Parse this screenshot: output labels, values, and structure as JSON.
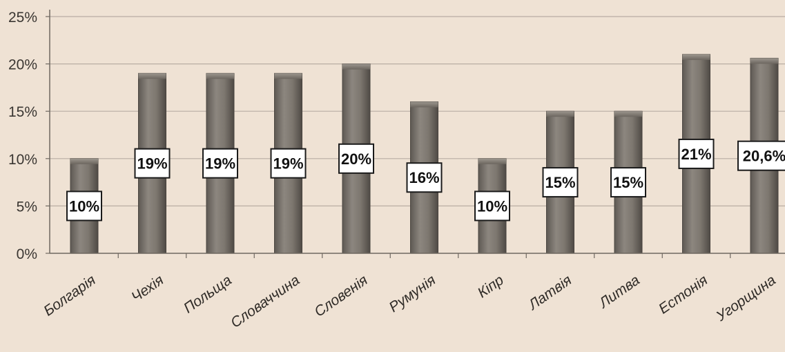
{
  "chart_data": {
    "type": "bar",
    "title": "",
    "xlabel": "",
    "ylabel": "",
    "categories": [
      "Болгарія",
      "Чехія",
      "Польща",
      "Словаччина",
      "Словенія",
      "Румунія",
      "Кіпр",
      "Латвія",
      "Литва",
      "Естонія",
      "Угорщина"
    ],
    "values": [
      10,
      19,
      19,
      19,
      20,
      16,
      10,
      15,
      15,
      21,
      20.6
    ],
    "data_labels": [
      "10%",
      "19%",
      "19%",
      "19%",
      "20%",
      "16%",
      "10%",
      "15%",
      "15%",
      "21%",
      "20,6%"
    ],
    "yticks": [
      "0%",
      "5%",
      "10%",
      "15%",
      "20%",
      "25%"
    ],
    "ylim": [
      0,
      25
    ],
    "grid": true,
    "legend": "none",
    "colors": {
      "background": "#efe2d4",
      "bar": "#7b756e",
      "bar_dark": "#5a554f",
      "grid": "#b9ada3",
      "axis": "#6f6860",
      "label_box": "#ffffff",
      "label_border": "#1a1a1a"
    }
  }
}
